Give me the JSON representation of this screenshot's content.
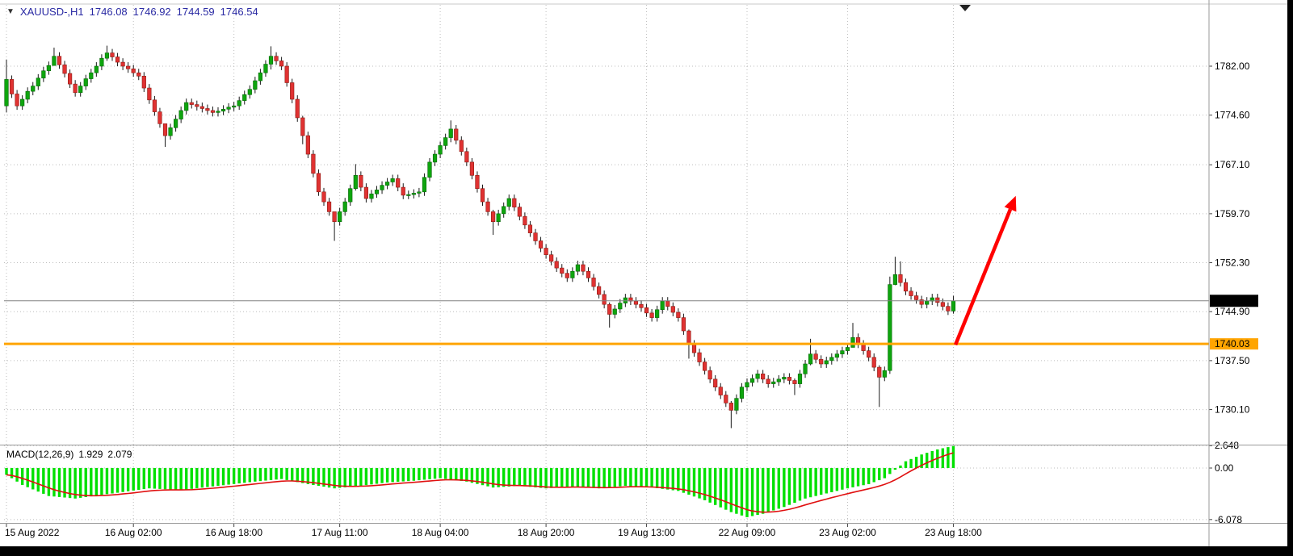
{
  "header": {
    "dropdown_icon": "▼",
    "symbol_period": "XAUUSD-,H1",
    "open": "1746.08",
    "high": "1746.92",
    "low": "1744.59",
    "close": "1746.54"
  },
  "price_axis": {
    "gridline_labels": [
      "1782.00",
      "1774.60",
      "1767.10",
      "1759.70",
      "1752.30",
      "1744.90",
      "1737.50",
      "1730.10"
    ],
    "current_price_label": "1746.54",
    "hline_label": "1740.03"
  },
  "time_axis": {
    "ticks": [
      {
        "index": 0,
        "label": "15 Aug 2022"
      },
      {
        "index": 24,
        "label": "16 Aug 02:00"
      },
      {
        "index": 43,
        "label": "16 Aug 18:00"
      },
      {
        "index": 63,
        "label": "17 Aug 11:00"
      },
      {
        "index": 82,
        "label": "18 Aug 04:00"
      },
      {
        "index": 102,
        "label": "18 Aug 20:00"
      },
      {
        "index": 121,
        "label": "19 Aug 13:00"
      },
      {
        "index": 140,
        "label": "22 Aug 09:00"
      },
      {
        "index": 159,
        "label": "23 Aug 02:00"
      },
      {
        "index": 179,
        "label": "23 Aug 18:00"
      }
    ]
  },
  "macd": {
    "label": "MACD(12,26,9)",
    "main_value": "1.929",
    "signal_value": "2.079",
    "axis_labels": [
      "2.648",
      "0.00",
      "-6.078"
    ],
    "axis_values": [
      2.648,
      0.0,
      -6.078
    ]
  },
  "colors": {
    "background": "#ffffff",
    "grid": "#bdbdbd",
    "separator": "#9a9a9a",
    "bull": "#0ea50e",
    "bull_border": "#066806",
    "bear": "#e03232",
    "bear_border": "#8c1a12",
    "wick": "#1a1a1a",
    "macd_histogram": "#00e000",
    "macd_signal": "#e01010",
    "hline": "#ffa500",
    "arrow": "#ff0000",
    "header_text": "#2929a3",
    "axis_text": "#000000",
    "current_price_bg": "#000000",
    "current_price_text": "#ffffff",
    "frame": "#000000"
  },
  "chart_data": [
    {
      "type": "candlestick",
      "title": "XAUUSD- H1",
      "ylim": [
        1726.2,
        1789.3
      ],
      "price_gridlines": [
        1782.0,
        1774.6,
        1767.1,
        1759.7,
        1752.3,
        1744.9,
        1737.5,
        1730.1
      ],
      "first_open": 1776.0,
      "closes": [
        1780.0,
        1777.8,
        1776.0,
        1777.0,
        1778.2,
        1779.0,
        1780.2,
        1781.3,
        1782.1,
        1783.5,
        1782.2,
        1780.9,
        1779.3,
        1778.0,
        1779.0,
        1780.1,
        1781.0,
        1782.0,
        1783.2,
        1784.0,
        1783.4,
        1782.6,
        1782.0,
        1781.6,
        1781.0,
        1780.5,
        1778.7,
        1776.9,
        1775.1,
        1773.3,
        1771.5,
        1772.7,
        1774.0,
        1775.3,
        1776.5,
        1776.2,
        1775.9,
        1775.6,
        1775.3,
        1775.0,
        1775.2,
        1775.5,
        1775.8,
        1776.0,
        1776.8,
        1777.7,
        1778.5,
        1779.8,
        1781.0,
        1782.3,
        1783.5,
        1782.8,
        1782.0,
        1779.5,
        1777.0,
        1774.2,
        1771.5,
        1768.7,
        1765.8,
        1763.0,
        1761.5,
        1760.0,
        1758.5,
        1760.0,
        1761.5,
        1763.5,
        1765.5,
        1763.7,
        1762.0,
        1762.7,
        1763.3,
        1764.0,
        1764.5,
        1765.0,
        1763.7,
        1762.5,
        1762.6,
        1762.8,
        1763.0,
        1765.2,
        1767.5,
        1768.7,
        1770.0,
        1771.2,
        1772.5,
        1770.8,
        1769.1,
        1767.5,
        1765.5,
        1763.5,
        1761.5,
        1760.0,
        1758.5,
        1759.7,
        1760.8,
        1762.0,
        1760.7,
        1759.3,
        1758.0,
        1756.8,
        1755.6,
        1754.5,
        1753.5,
        1752.5,
        1751.5,
        1750.7,
        1750.0,
        1751.0,
        1752.0,
        1751.0,
        1750.0,
        1748.7,
        1747.5,
        1746.0,
        1744.5,
        1745.3,
        1746.2,
        1747.0,
        1746.5,
        1746.0,
        1745.5,
        1744.7,
        1744.0,
        1745.2,
        1746.5,
        1745.7,
        1744.8,
        1744.0,
        1742.0,
        1740.0,
        1738.7,
        1737.3,
        1736.0,
        1734.7,
        1733.5,
        1732.3,
        1731.1,
        1730.0,
        1731.8,
        1733.5,
        1734.2,
        1734.8,
        1735.5,
        1734.7,
        1734.0,
        1734.3,
        1734.7,
        1735.0,
        1734.5,
        1734.0,
        1735.5,
        1737.0,
        1738.5,
        1737.7,
        1737.0,
        1737.5,
        1738.0,
        1738.5,
        1739.0,
        1739.5,
        1741.0,
        1740.0,
        1739.0,
        1738.0,
        1736.5,
        1735.0,
        1736.0,
        1749.0,
        1750.5,
        1749.3,
        1748.0,
        1747.3,
        1746.7,
        1746.0,
        1746.5,
        1747.0,
        1746.3,
        1745.7,
        1745.0,
        1746.54
      ],
      "wick_overrides": {
        "0": [
          1783.0,
          1775.0
        ],
        "9": [
          1784.8,
          1782.5
        ],
        "19": [
          1785.1,
          1782.8
        ],
        "30": [
          1772.3,
          1769.8
        ],
        "50": [
          1785.0,
          1781.5
        ],
        "56": [
          1774.5,
          1770.2
        ],
        "62": [
          1759.6,
          1755.6
        ],
        "66": [
          1767.2,
          1763.2
        ],
        "84": [
          1773.8,
          1770.5
        ],
        "92": [
          1760.3,
          1756.5
        ],
        "114": [
          1746.3,
          1742.5
        ],
        "129": [
          1742.2,
          1737.8
        ],
        "137": [
          1731.4,
          1727.3
        ],
        "149": [
          1734.8,
          1732.3
        ],
        "152": [
          1740.8,
          1736.8
        ],
        "160": [
          1743.2,
          1739.7
        ],
        "165": [
          1736.8,
          1730.5
        ],
        "167": [
          1750.2,
          1735.5
        ],
        "168": [
          1753.2,
          1748.9
        ],
        "169": [
          1752.5,
          1748.7
        ],
        "179": [
          1747.3,
          1744.6
        ]
      },
      "current_price": 1746.54,
      "horizontal_line": 1740.03,
      "trend_arrow": {
        "from_index": 179.4,
        "from_price": 1739.9,
        "to_index": 190.8,
        "to_price": 1762.4,
        "color": "#ff0000"
      }
    },
    {
      "type": "bar",
      "name": "MACD histogram",
      "ylim": [
        -6.5,
        2.9
      ],
      "anchors": [
        [
          0,
          -0.8
        ],
        [
          3,
          -2.0
        ],
        [
          8,
          -3.3
        ],
        [
          13,
          -3.6
        ],
        [
          20,
          -3.0
        ],
        [
          27,
          -2.4
        ],
        [
          33,
          -2.6
        ],
        [
          40,
          -2.1
        ],
        [
          47,
          -1.6
        ],
        [
          52,
          -1.3
        ],
        [
          57,
          -1.9
        ],
        [
          62,
          -2.4
        ],
        [
          67,
          -2.1
        ],
        [
          72,
          -1.7
        ],
        [
          77,
          -1.5
        ],
        [
          82,
          -1.2
        ],
        [
          87,
          -1.6
        ],
        [
          92,
          -2.3
        ],
        [
          97,
          -2.1
        ],
        [
          102,
          -2.4
        ],
        [
          107,
          -2.2
        ],
        [
          112,
          -2.4
        ],
        [
          117,
          -2.1
        ],
        [
          122,
          -2.3
        ],
        [
          127,
          -2.7
        ],
        [
          132,
          -3.8
        ],
        [
          137,
          -5.2
        ],
        [
          140,
          -5.8
        ],
        [
          143,
          -5.4
        ],
        [
          147,
          -4.6
        ],
        [
          151,
          -3.6
        ],
        [
          155,
          -3.0
        ],
        [
          159,
          -2.4
        ],
        [
          163,
          -1.9
        ],
        [
          166,
          -1.2
        ],
        [
          168,
          -0.2
        ],
        [
          170,
          0.8
        ],
        [
          173,
          1.6
        ],
        [
          176,
          2.2
        ],
        [
          179,
          2.6
        ]
      ],
      "signal_ema_period": 9
    }
  ]
}
